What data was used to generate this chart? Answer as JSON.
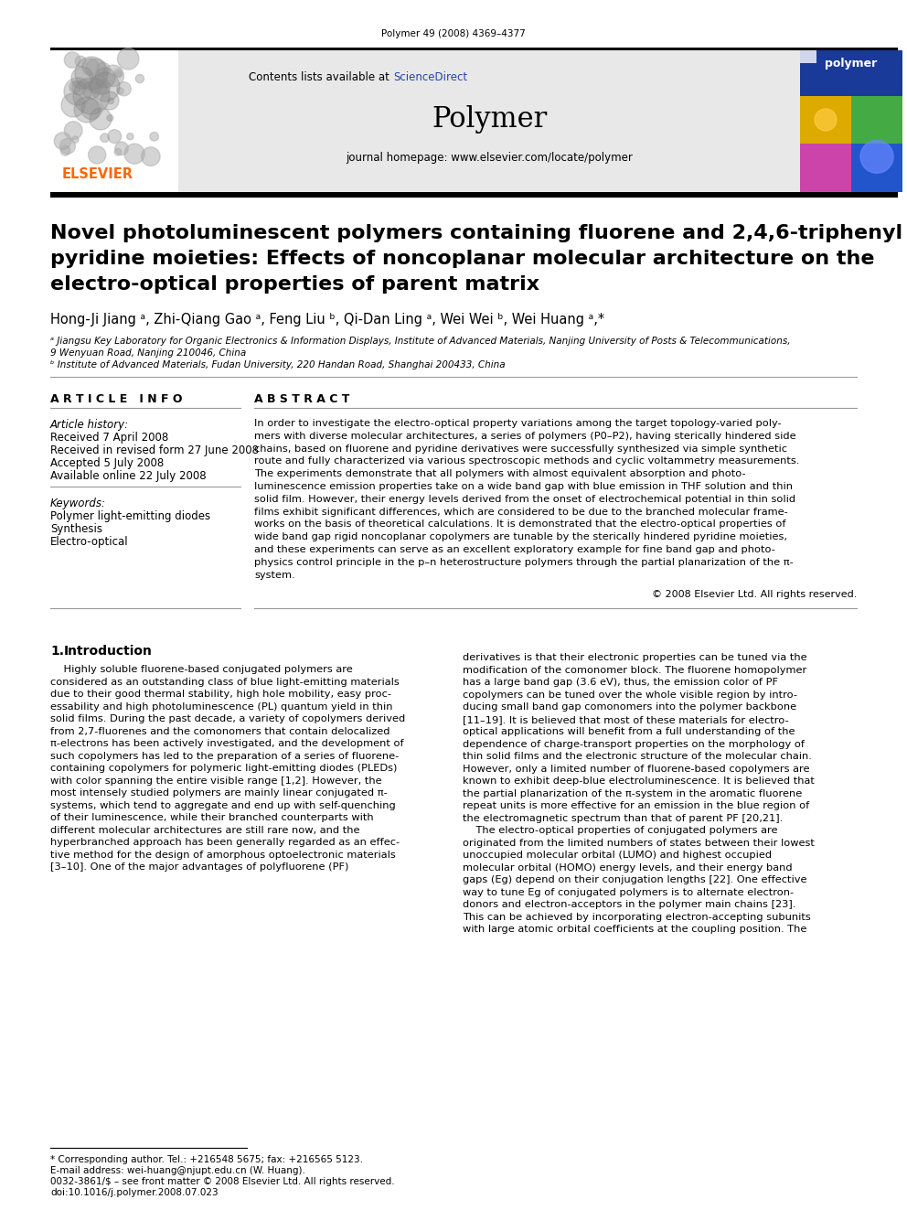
{
  "journal_ref": "Polymer 49 (2008) 4369–4377",
  "journal_name": "Polymer",
  "journal_homepage": "journal homepage: www.elsevier.com/locate/polymer",
  "title_line1": "Novel photoluminescent polymers containing fluorene and 2,4,6-triphenyl",
  "title_line2": "pyridine moieties: Effects of noncoplanar molecular architecture on the",
  "title_line3": "electro-optical properties of parent matrix",
  "authors_str": "Hong-Ji Jiang ᵃ, Zhi-Qiang Gao ᵃ, Feng Liu ᵇ, Qi-Dan Ling ᵃ, Wei Wei ᵇ, Wei Huang ᵃ,*",
  "affil_a": "ᵃ Jiangsu Key Laboratory for Organic Electronics & Information Displays, Institute of Advanced Materials, Nanjing University of Posts & Telecommunications,",
  "affil_a2": "9 Wenyuan Road, Nanjing 210046, China",
  "affil_b": "ᵇ Institute of Advanced Materials, Fudan University, 220 Handan Road, Shanghai 200433, China",
  "article_info_header": "A R T I C L E   I N F O",
  "abstract_header": "A B S T R A C T",
  "article_history_label": "Article history:",
  "received": "Received 7 April 2008",
  "received_revised": "Received in revised form 27 June 2008",
  "accepted": "Accepted 5 July 2008",
  "available": "Available online 22 July 2008",
  "keywords_label": "Keywords:",
  "keyword1": "Polymer light-emitting diodes",
  "keyword2": "Synthesis",
  "keyword3": "Electro-optical",
  "abstract_lines": [
    "In order to investigate the electro-optical property variations among the target topology-varied poly-",
    "mers with diverse molecular architectures, a series of polymers (P0–P2), having sterically hindered side",
    "chains, based on fluorene and pyridine derivatives were successfully synthesized via simple synthetic",
    "route and fully characterized via various spectroscopic methods and cyclic voltammetry measurements.",
    "The experiments demonstrate that all polymers with almost equivalent absorption and photo-",
    "luminescence emission properties take on a wide band gap with blue emission in THF solution and thin",
    "solid film. However, their energy levels derived from the onset of electrochemical potential in thin solid",
    "films exhibit significant differences, which are considered to be due to the branched molecular frame-",
    "works on the basis of theoretical calculations. It is demonstrated that the electro-optical properties of",
    "wide band gap rigid noncoplanar copolymers are tunable by the sterically hindered pyridine moieties,",
    "and these experiments can serve as an excellent exploratory example for fine band gap and photo-",
    "physics control principle in the p–n heterostructure polymers through the partial planarization of the π-",
    "system."
  ],
  "copyright": "© 2008 Elsevier Ltd. All rights reserved.",
  "intro_left_lines": [
    "    Highly soluble fluorene-based conjugated polymers are",
    "considered as an outstanding class of blue light-emitting materials",
    "due to their good thermal stability, high hole mobility, easy proc-",
    "essability and high photoluminescence (PL) quantum yield in thin",
    "solid films. During the past decade, a variety of copolymers derived",
    "from 2,7-fluorenes and the comonomers that contain delocalized",
    "π-electrons has been actively investigated, and the development of",
    "such copolymers has led to the preparation of a series of fluorene-",
    "containing copolymers for polymeric light-emitting diodes (PLEDs)",
    "with color spanning the entire visible range [1,2]. However, the",
    "most intensely studied polymers are mainly linear conjugated π-",
    "systems, which tend to aggregate and end up with self-quenching",
    "of their luminescence, while their branched counterparts with",
    "different molecular architectures are still rare now, and the",
    "hyperbranched approach has been generally regarded as an effec-",
    "tive method for the design of amorphous optoelectronic materials",
    "[3–10]. One of the major advantages of polyfluorene (PF)"
  ],
  "intro_right_lines": [
    "derivatives is that their electronic properties can be tuned via the",
    "modification of the comonomer block. The fluorene homopolymer",
    "has a large band gap (3.6 eV), thus, the emission color of PF",
    "copolymers can be tuned over the whole visible region by intro-",
    "ducing small band gap comonomers into the polymer backbone",
    "[11–19]. It is believed that most of these materials for electro-",
    "optical applications will benefit from a full understanding of the",
    "dependence of charge-transport properties on the morphology of",
    "thin solid films and the electronic structure of the molecular chain.",
    "However, only a limited number of fluorene-based copolymers are",
    "known to exhibit deep-blue electroluminescence. It is believed that",
    "the partial planarization of the π-system in the aromatic fluorene",
    "repeat units is more effective for an emission in the blue region of",
    "the electromagnetic spectrum than that of parent PF [20,21].",
    "    The electro-optical properties of conjugated polymers are",
    "originated from the limited numbers of states between their lowest",
    "unoccupied molecular orbital (LUMO) and highest occupied",
    "molecular orbital (HOMO) energy levels, and their energy band",
    "gaps (Eg) depend on their conjugation lengths [22]. One effective",
    "way to tune Eg of conjugated polymers is to alternate electron-",
    "donors and electron-acceptors in the polymer main chains [23].",
    "This can be achieved by incorporating electron-accepting subunits",
    "with large atomic orbital coefficients at the coupling position. The"
  ],
  "footnote_star": "* Corresponding author. Tel.: +216548 5675; fax: +216565 5123.",
  "footnote_email": "E-mail address: wei-huang@njupt.edu.cn (W. Huang).",
  "footnote_issn": "0032-3861/$ – see front matter © 2008 Elsevier Ltd. All rights reserved.",
  "footnote_doi": "doi:10.1016/j.polymer.2008.07.023",
  "bg_color": "#ffffff",
  "header_bg": "#e8e8e8",
  "link_color": "#2244aa",
  "orange_color": "#FF6600"
}
